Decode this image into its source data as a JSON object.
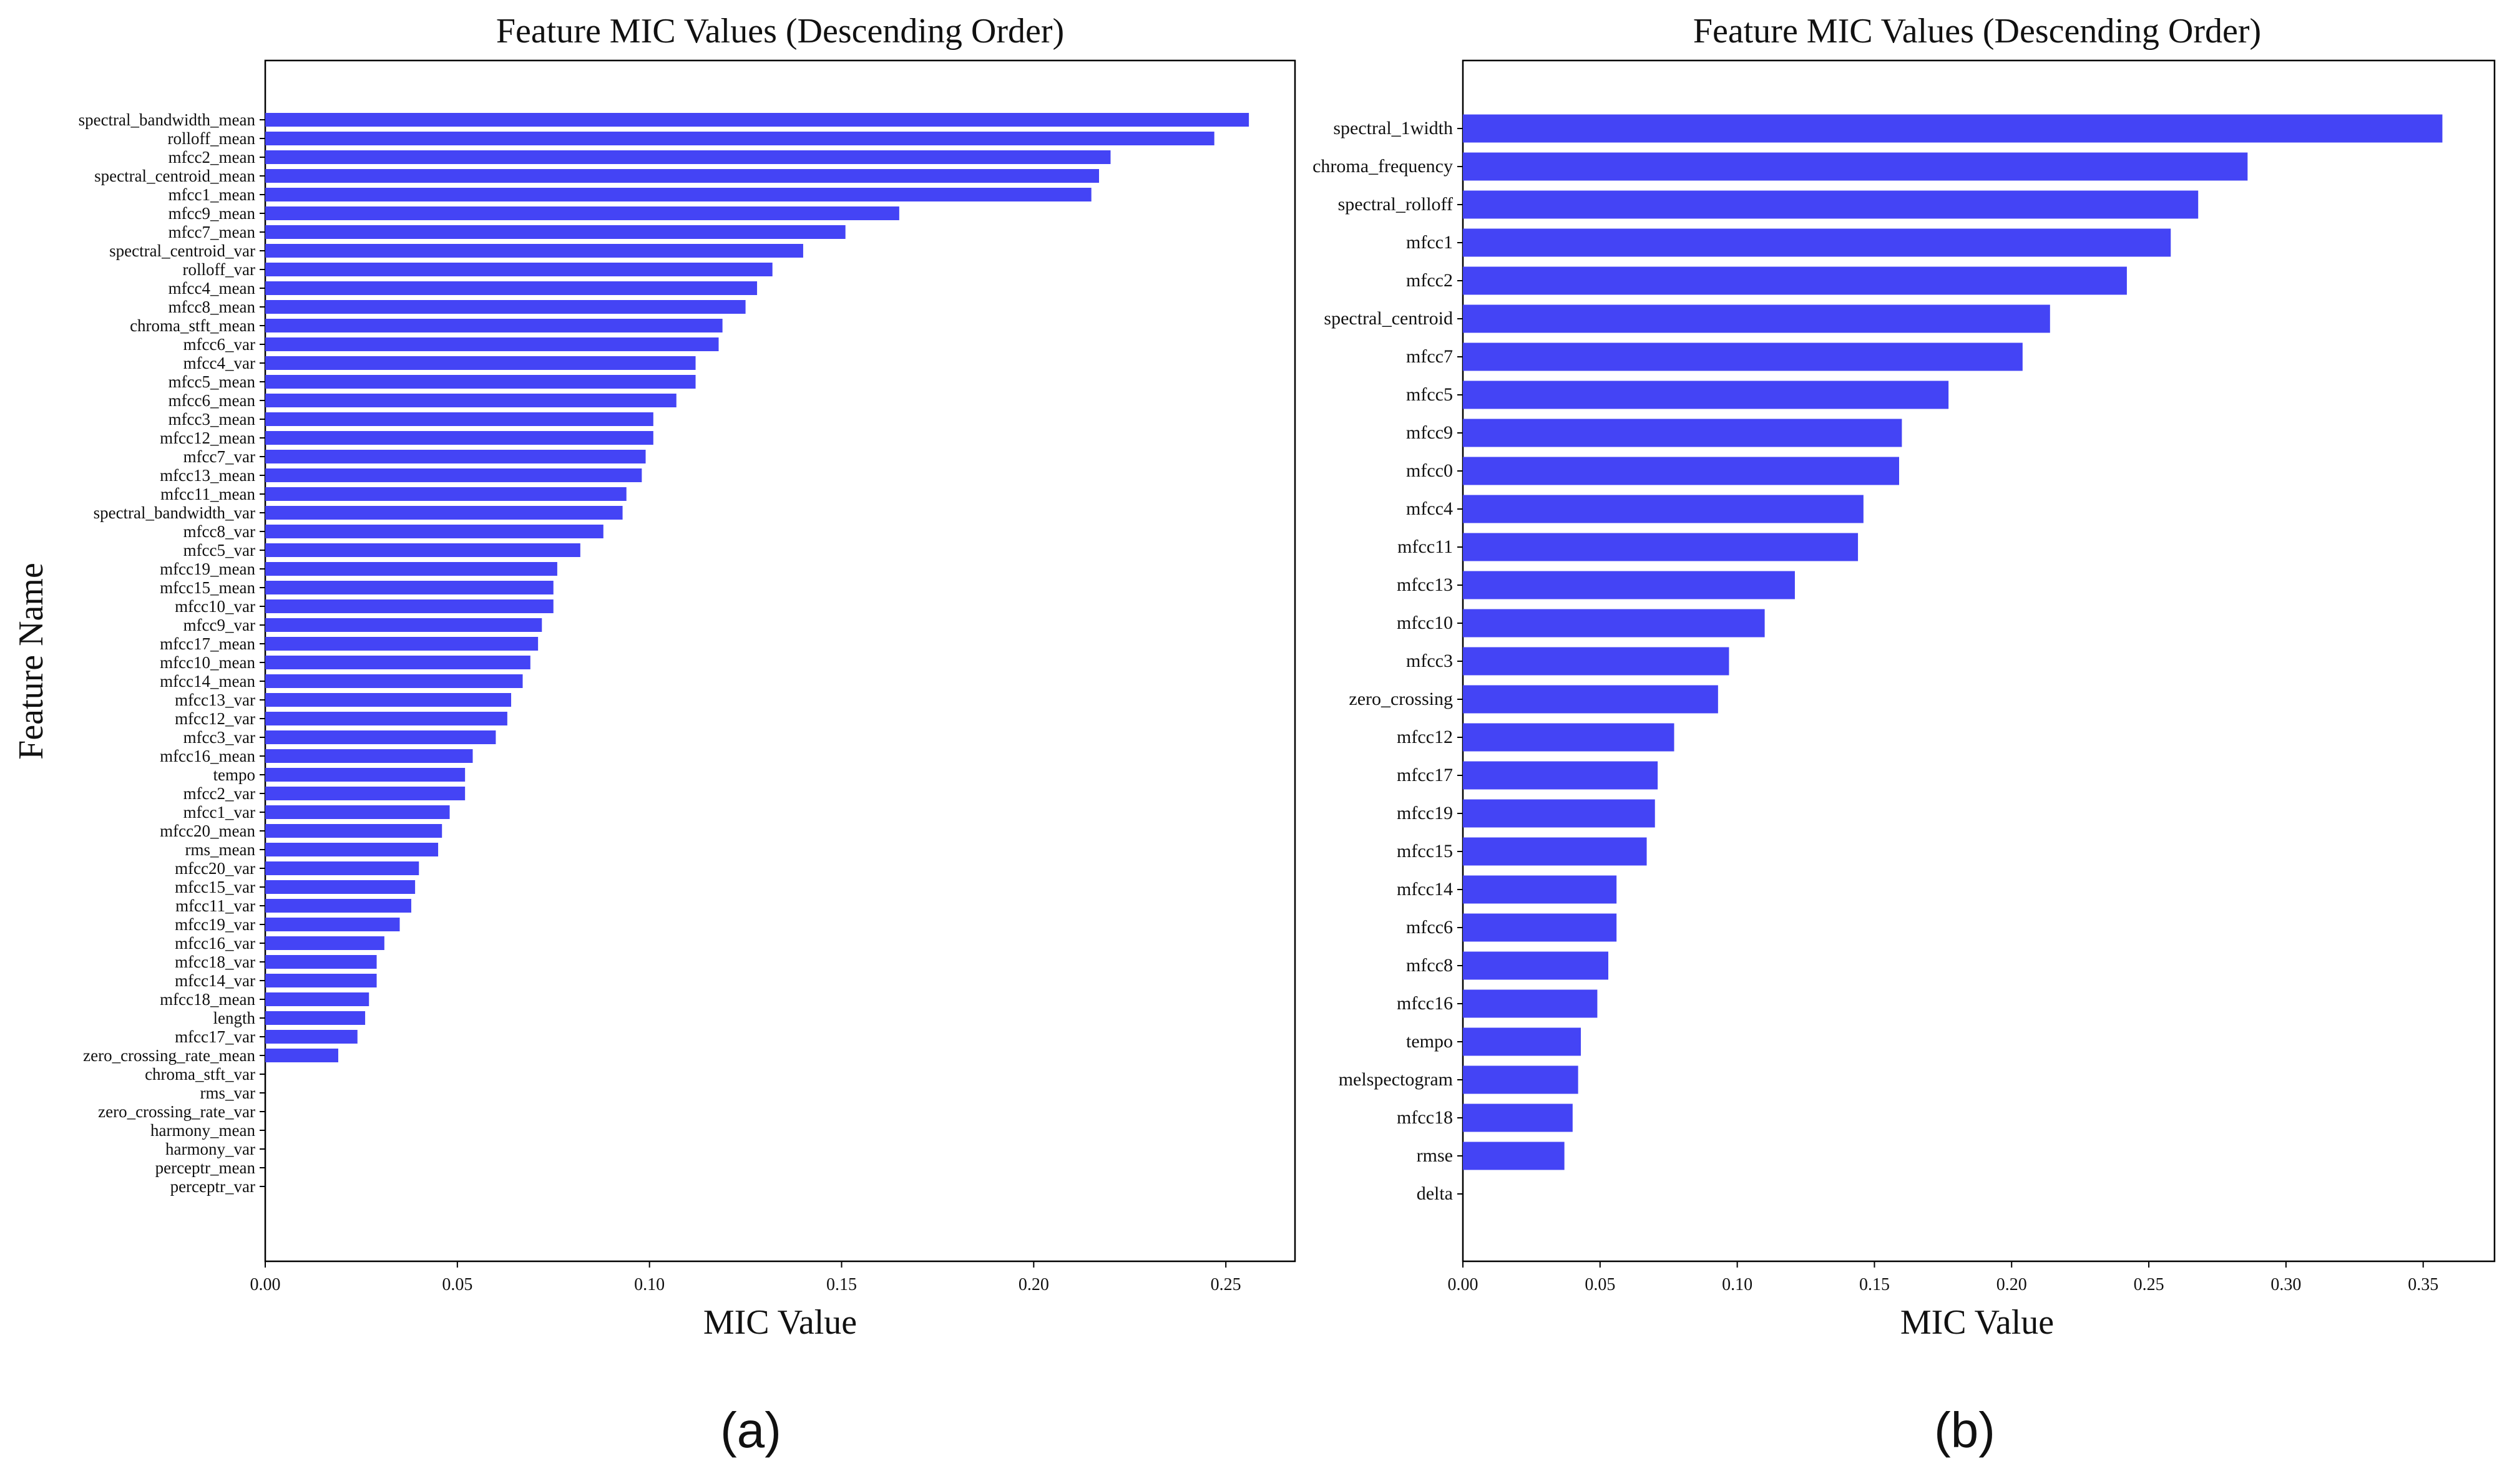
{
  "figure": {
    "panel_a_label": "(a)",
    "panel_b_label": "(b)",
    "bar_color": "#4444f5"
  },
  "chart_data": [
    {
      "type": "bar",
      "orientation": "horizontal",
      "title": "Feature MIC Values (Descending Order)",
      "xlabel": "MIC Value",
      "ylabel": "Feature Name",
      "xlim": [
        0,
        0.268
      ],
      "xticks": [
        "0.00",
        "0.05",
        "0.10",
        "0.15",
        "0.20",
        "0.25"
      ],
      "categories": [
        "spectral_bandwidth_mean",
        "rolloff_mean",
        "mfcc2_mean",
        "spectral_centroid_mean",
        "mfcc1_mean",
        "mfcc9_mean",
        "mfcc7_mean",
        "spectral_centroid_var",
        "rolloff_var",
        "mfcc4_mean",
        "mfcc8_mean",
        "chroma_stft_mean",
        "mfcc6_var",
        "mfcc4_var",
        "mfcc5_mean",
        "mfcc6_mean",
        "mfcc3_mean",
        "mfcc12_mean",
        "mfcc7_var",
        "mfcc13_mean",
        "mfcc11_mean",
        "spectral_bandwidth_var",
        "mfcc8_var",
        "mfcc5_var",
        "mfcc19_mean",
        "mfcc15_mean",
        "mfcc10_var",
        "mfcc9_var",
        "mfcc17_mean",
        "mfcc10_mean",
        "mfcc14_mean",
        "mfcc13_var",
        "mfcc12_var",
        "mfcc3_var",
        "mfcc16_mean",
        "tempo",
        "mfcc2_var",
        "mfcc1_var",
        "mfcc20_mean",
        "rms_mean",
        "mfcc20_var",
        "mfcc15_var",
        "mfcc11_var",
        "mfcc19_var",
        "mfcc16_var",
        "mfcc18_var",
        "mfcc14_var",
        "mfcc18_mean",
        "length",
        "mfcc17_var",
        "zero_crossing_rate_mean",
        "chroma_stft_var",
        "rms_var",
        "zero_crossing_rate_var",
        "harmony_mean",
        "harmony_var",
        "perceptr_mean",
        "perceptr_var"
      ],
      "values": [
        0.256,
        0.247,
        0.22,
        0.217,
        0.215,
        0.165,
        0.151,
        0.14,
        0.132,
        0.128,
        0.125,
        0.119,
        0.118,
        0.112,
        0.112,
        0.107,
        0.101,
        0.101,
        0.099,
        0.098,
        0.094,
        0.093,
        0.088,
        0.082,
        0.076,
        0.075,
        0.075,
        0.072,
        0.071,
        0.069,
        0.067,
        0.064,
        0.063,
        0.06,
        0.054,
        0.052,
        0.052,
        0.048,
        0.046,
        0.045,
        0.04,
        0.039,
        0.038,
        0.035,
        0.031,
        0.029,
        0.029,
        0.027,
        0.026,
        0.024,
        0.019,
        0,
        0,
        0,
        0,
        0,
        0,
        0
      ]
    },
    {
      "type": "bar",
      "orientation": "horizontal",
      "title": "Feature MIC Values (Descending Order)",
      "xlabel": "MIC Value",
      "xlim": [
        0,
        0.376
      ],
      "xticks": [
        "0.00",
        "0.05",
        "0.10",
        "0.15",
        "0.20",
        "0.25",
        "0.30",
        "0.35"
      ],
      "categories": [
        "spectral_1width",
        "chroma_frequency",
        "spectral_rolloff",
        "mfcc1",
        "mfcc2",
        "spectral_centroid",
        "mfcc7",
        "mfcc5",
        "mfcc9",
        "mfcc0",
        "mfcc4",
        "mfcc11",
        "mfcc13",
        "mfcc10",
        "mfcc3",
        "zero_crossing",
        "mfcc12",
        "mfcc17",
        "mfcc19",
        "mfcc15",
        "mfcc14",
        "mfcc6",
        "mfcc8",
        "mfcc16",
        "tempo",
        "melspectogram",
        "mfcc18",
        "rmse",
        "delta"
      ],
      "values": [
        0.357,
        0.286,
        0.268,
        0.258,
        0.242,
        0.214,
        0.204,
        0.177,
        0.16,
        0.159,
        0.146,
        0.144,
        0.121,
        0.11,
        0.097,
        0.093,
        0.077,
        0.071,
        0.07,
        0.067,
        0.056,
        0.056,
        0.053,
        0.049,
        0.043,
        0.042,
        0.04,
        0.037,
        0
      ]
    }
  ]
}
